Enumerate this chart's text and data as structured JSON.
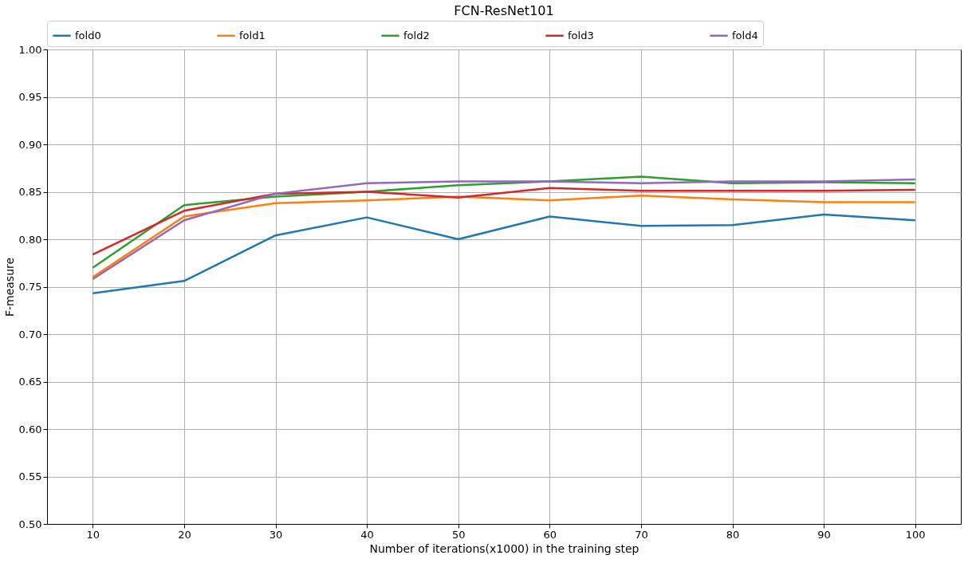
{
  "chart_data": {
    "type": "line",
    "title": "FCN-ResNet101",
    "xlabel": "Number of iterations(x1000) in the training step",
    "ylabel": "F-measure",
    "x": [
      10,
      20,
      30,
      40,
      50,
      60,
      70,
      80,
      90,
      100
    ],
    "xlim": [
      5,
      105
    ],
    "xticks": [
      10,
      20,
      30,
      40,
      50,
      60,
      70,
      80,
      90,
      100
    ],
    "ylim": [
      0.5,
      1.0
    ],
    "yticks": [
      {
        "value": 0.5,
        "label": "0.50"
      },
      {
        "value": 0.55,
        "label": "0.55"
      },
      {
        "value": 0.6,
        "label": "0.60"
      },
      {
        "value": 0.65,
        "label": "0.65"
      },
      {
        "value": 0.7,
        "label": "0.70"
      },
      {
        "value": 0.75,
        "label": "0.75"
      },
      {
        "value": 0.8,
        "label": "0.80"
      },
      {
        "value": 0.85,
        "label": "0.85"
      },
      {
        "value": 0.9,
        "label": "0.90"
      },
      {
        "value": 0.95,
        "label": "0.95"
      },
      {
        "value": 1.0,
        "label": "1.00"
      }
    ],
    "grid": true,
    "legend": "top",
    "line_style": "solid",
    "marker": "none",
    "series": [
      {
        "name": "fold0",
        "color": "#1f77b4",
        "values": [
          0.743,
          0.756,
          0.804,
          0.823,
          0.8,
          0.824,
          0.814,
          0.815,
          0.826,
          0.82
        ]
      },
      {
        "name": "fold1",
        "color": "#ff7f0e",
        "values": [
          0.76,
          0.824,
          0.838,
          0.841,
          0.845,
          0.841,
          0.846,
          0.842,
          0.839,
          0.839
        ]
      },
      {
        "name": "fold2",
        "color": "#2ca02c",
        "values": [
          0.77,
          0.836,
          0.845,
          0.85,
          0.857,
          0.861,
          0.866,
          0.859,
          0.86,
          0.859
        ]
      },
      {
        "name": "fold3",
        "color": "#d62728",
        "values": [
          0.784,
          0.83,
          0.848,
          0.85,
          0.844,
          0.854,
          0.851,
          0.851,
          0.851,
          0.852
        ]
      },
      {
        "name": "fold4",
        "color": "#9467bd",
        "values": [
          0.758,
          0.82,
          0.848,
          0.859,
          0.861,
          0.861,
          0.859,
          0.861,
          0.861,
          0.863
        ]
      }
    ]
  }
}
